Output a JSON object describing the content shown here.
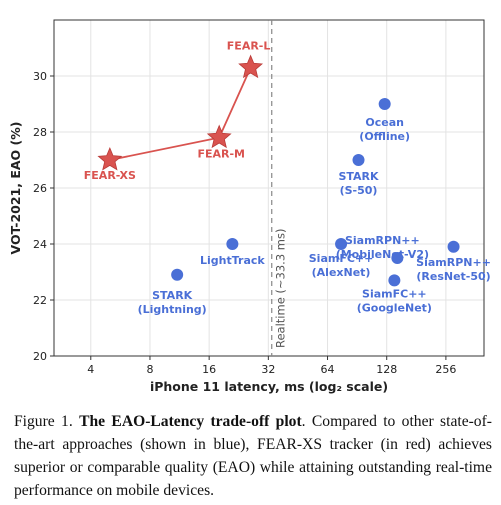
{
  "chart_data": {
    "type": "scatter",
    "title": "",
    "xlabel": "iPhone 11 latency, ms (log₂ scale)",
    "ylabel": "VOT-2021, EAO (%)",
    "x_scale": "log2",
    "xlim": [
      2.6,
      400
    ],
    "ylim": [
      20,
      32
    ],
    "x_ticks": [
      4,
      8,
      16,
      32,
      64,
      128,
      256
    ],
    "y_ticks": [
      20,
      22,
      24,
      26,
      28,
      30
    ],
    "grid": true,
    "colors": {
      "fear": "#d9534f",
      "other": "#4a6fd6",
      "realtime": "#888888"
    },
    "realtime": {
      "x": 33.3,
      "label": "Realtime (~33.3 ms)"
    },
    "fear_series": {
      "points": [
        {
          "label": "FEAR-XS",
          "x": 5,
          "y": 27.0
        },
        {
          "label": "FEAR-M",
          "x": 18,
          "y": 27.8
        },
        {
          "label": "FEAR-L",
          "x": 26,
          "y": 30.3
        }
      ]
    },
    "other_series": {
      "points": [
        {
          "label": [
            "STARK",
            "(Lightning)"
          ],
          "x": 11,
          "y": 22.9
        },
        {
          "label": [
            "LightTrack"
          ],
          "x": 21,
          "y": 24.0
        },
        {
          "label": [
            "SiamFC++",
            "(AlexNet)"
          ],
          "x": 75,
          "y": 24.0
        },
        {
          "label": [
            "STARK",
            "(S-50)"
          ],
          "x": 92,
          "y": 27.0
        },
        {
          "label": [
            "Ocean",
            "(Offline)"
          ],
          "x": 125,
          "y": 29.0
        },
        {
          "label": [
            "SiamRPN++",
            "(MobileNet-V2)"
          ],
          "x": 145,
          "y": 23.5
        },
        {
          "label": [
            "SiamFC++",
            "(GoogleNet)"
          ],
          "x": 140,
          "y": 22.7
        },
        {
          "label": [
            "SiamRPN++",
            "(ResNet-50)"
          ],
          "x": 280,
          "y": 23.9
        }
      ]
    }
  },
  "caption": {
    "prefix": "Figure 1.",
    "bold": "The EAO-Latency trade-off plot",
    "text": ". Compared to other state-of-the-art approaches (shown in blue), FEAR-XS tracker (in red) achieves superior or comparable quality (EAO) while attaining outstanding real-time performance on mobile devices."
  }
}
